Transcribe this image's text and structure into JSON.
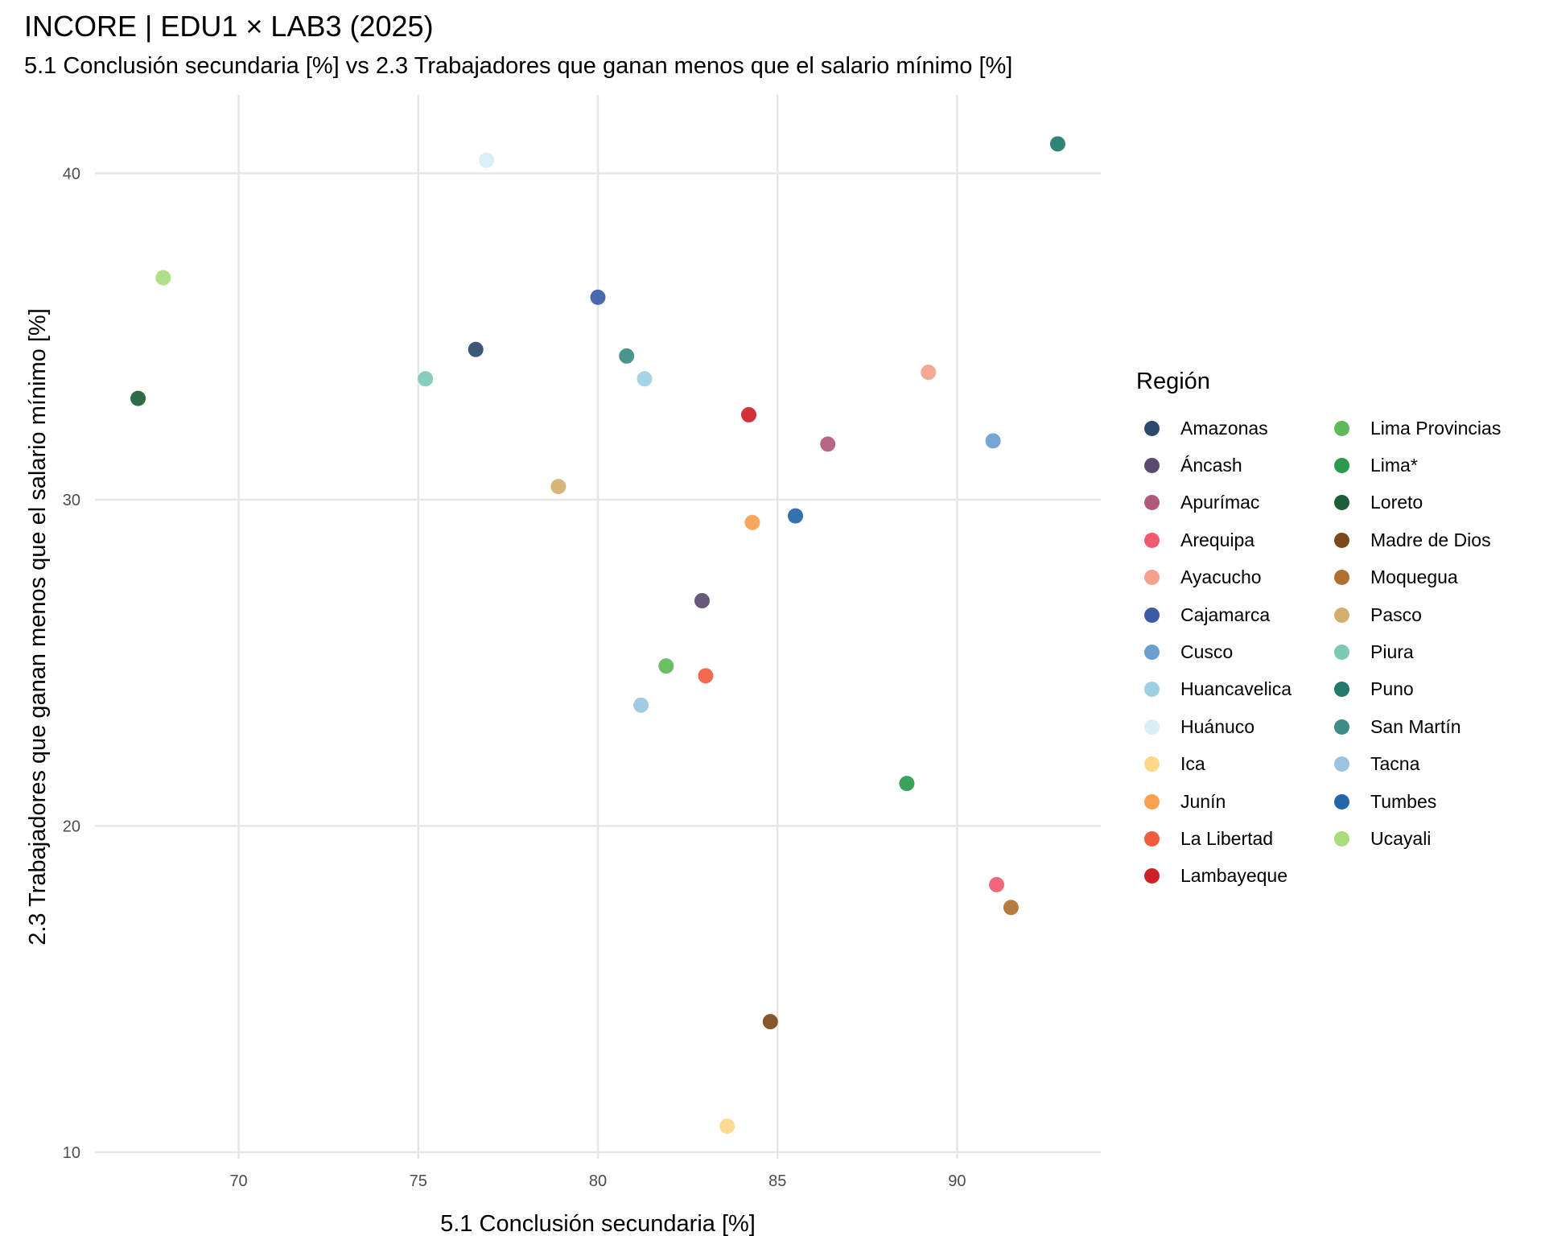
{
  "chart_data": {
    "type": "scatter",
    "title": "INCORE | EDU1 × LAB3 (2025)",
    "subtitle": "5.1 Conclusión secundaria [%]  vs  2.3 Trabajadores que ganan menos que el salario mínimo [%]",
    "xlabel": "5.1 Conclusión secundaria [%]",
    "ylabel": "2.3 Trabajadores que ganan menos que el salario mínimo [%]",
    "xlim": [
      66.0,
      94.0
    ],
    "ylim": [
      9.8,
      42.4
    ],
    "xticks": [
      70,
      75,
      80,
      85,
      90
    ],
    "yticks": [
      10,
      20,
      30,
      40
    ],
    "grid": true,
    "legend_title": "Región",
    "legend_placement": "right",
    "points": [
      {
        "region": "Amazonas",
        "x": 76.6,
        "y": 34.6,
        "color": "#2c4a6e"
      },
      {
        "region": "Áncash",
        "x": 82.9,
        "y": 26.9,
        "color": "#5b4a6e"
      },
      {
        "region": "Apurímac",
        "x": 86.4,
        "y": 31.7,
        "color": "#b05a7a"
      },
      {
        "region": "Arequipa",
        "x": 91.1,
        "y": 18.2,
        "color": "#ee5a6f"
      },
      {
        "region": "Ayacucho",
        "x": 89.2,
        "y": 33.9,
        "color": "#f4a28c"
      },
      {
        "region": "Cajamarca",
        "x": 80.0,
        "y": 36.2,
        "color": "#3b5ba5"
      },
      {
        "region": "Cusco",
        "x": 91.0,
        "y": 31.8,
        "color": "#6a9fd0"
      },
      {
        "region": "Huancavelica",
        "x": 81.3,
        "y": 33.7,
        "color": "#9ecfe3"
      },
      {
        "region": "Huánuco",
        "x": 76.9,
        "y": 40.4,
        "color": "#d8eef5"
      },
      {
        "region": "Ica",
        "x": 83.6,
        "y": 10.8,
        "color": "#fdd889"
      },
      {
        "region": "Junín",
        "x": 84.3,
        "y": 29.3,
        "color": "#f8a04f"
      },
      {
        "region": "La Libertad",
        "x": 83.0,
        "y": 24.6,
        "color": "#f05d3e"
      },
      {
        "region": "Lambayeque",
        "x": 84.2,
        "y": 32.6,
        "color": "#cd2128"
      },
      {
        "region": "Lima Provincias",
        "x": 81.9,
        "y": 24.9,
        "color": "#5fb85a"
      },
      {
        "region": "Lima*",
        "x": 88.6,
        "y": 21.3,
        "color": "#2a9a4c"
      },
      {
        "region": "Loreto",
        "x": 67.2,
        "y": 33.1,
        "color": "#1d5e3a"
      },
      {
        "region": "Madre de Dios",
        "x": 84.8,
        "y": 14.0,
        "color": "#7a4a1a"
      },
      {
        "region": "Moquegua",
        "x": 91.5,
        "y": 17.5,
        "color": "#b07030"
      },
      {
        "region": "Pasco",
        "x": 78.9,
        "y": 30.4,
        "color": "#d4b06e"
      },
      {
        "region": "Piura",
        "x": 75.2,
        "y": 33.7,
        "color": "#7ccab5"
      },
      {
        "region": "Puno",
        "x": 92.8,
        "y": 40.9,
        "color": "#1f7a6a"
      },
      {
        "region": "San Martín",
        "x": 80.8,
        "y": 34.4,
        "color": "#3d8c85"
      },
      {
        "region": "Tacna",
        "x": 81.2,
        "y": 23.7,
        "color": "#9cc4e0"
      },
      {
        "region": "Tumbes",
        "x": 85.5,
        "y": 29.5,
        "color": "#2464a8"
      },
      {
        "region": "Ucayali",
        "x": 67.9,
        "y": 36.8,
        "color": "#a8dc7c"
      }
    ]
  }
}
